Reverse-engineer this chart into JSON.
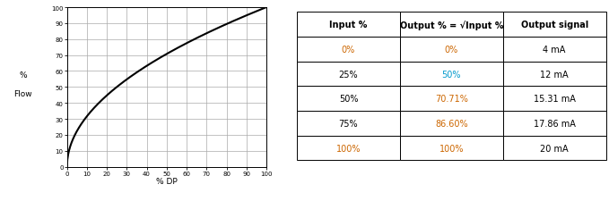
{
  "chart": {
    "xlabel": "% DP",
    "ylabel_line1": "%",
    "ylabel_line2": "Flow",
    "xlim": [
      0,
      100
    ],
    "ylim": [
      0,
      100
    ],
    "xticks": [
      0,
      10,
      20,
      30,
      40,
      50,
      60,
      70,
      80,
      90,
      100
    ],
    "yticks": [
      0,
      10,
      20,
      30,
      40,
      50,
      60,
      70,
      80,
      90,
      100
    ],
    "line_color": "#000000",
    "grid_color": "#aaaaaa",
    "bg_color": "#ffffff"
  },
  "table": {
    "col_headers": [
      "Input %",
      "Output % = √Input %",
      "Output signal"
    ],
    "rows": [
      [
        "0%",
        "0%",
        "4 mA"
      ],
      [
        "25%",
        "50%",
        "12 mA"
      ],
      [
        "50%",
        "70.71%",
        "15.31 mA"
      ],
      [
        "75%",
        "86.60%",
        "17.86 mA"
      ],
      [
        "100%",
        "100%",
        "20 mA"
      ]
    ],
    "row_colors_col0": [
      "#cc6600",
      "#000000",
      "#000000",
      "#000000",
      "#cc6600"
    ],
    "row_colors_col1": [
      "#cc6600",
      "#0099cc",
      "#cc6600",
      "#cc6600",
      "#cc6600"
    ],
    "row_colors_col2": [
      "#000000",
      "#000000",
      "#000000",
      "#000000",
      "#000000"
    ],
    "font_family": "DejaVu Sans"
  }
}
